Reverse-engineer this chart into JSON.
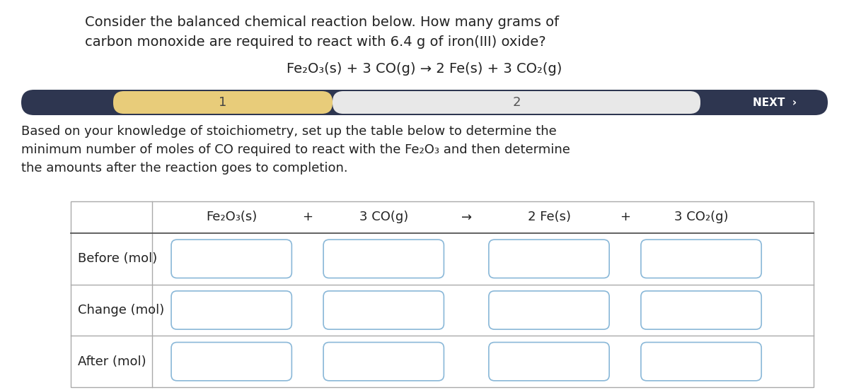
{
  "title_line1": "Consider the balanced chemical reaction below. How many grams of",
  "title_line2": "carbon monoxide are required to react with 6.4 g of iron(III) oxide?",
  "equation": "Fe₂O₃(s) + 3 CO(g) → 2 Fe(s) + 3 CO₂(g)",
  "progress_bar": {
    "bg_color": "#2e3650",
    "step1_color": "#e8cc7a",
    "step2_color": "#e8e8e8",
    "step1_label": "1",
    "step2_label": "2",
    "next_label": "NEXT  ›"
  },
  "paragraph_line1": "Based on your knowledge of stoichiometry, set up the table below to determine the",
  "paragraph_line2": "minimum number of moles of CO required to react with the Fe₂O₃ and then determine",
  "paragraph_line3": "the amounts after the reaction goes to completion.",
  "table": {
    "header_col1": "Fe₂O₃(s)",
    "header_plus1": "+",
    "header_col2": "3 CO(g)",
    "header_arrow": "→",
    "header_col3": "2 Fe(s)",
    "header_plus2": "+",
    "header_col4": "3 CO₂(g)",
    "row_labels": [
      "Before (mol)",
      "Change (mol)",
      "After (mol)"
    ],
    "input_box_color": "#ffffff",
    "input_box_border": "#8ab8d8",
    "table_border_color": "#aaaaaa"
  },
  "background_color": "#ffffff",
  "text_color": "#222222",
  "font_size_title": 14,
  "font_size_eq": 14,
  "font_size_para": 13,
  "font_size_table_header": 13,
  "font_size_row_label": 13,
  "font_size_bar": 13
}
